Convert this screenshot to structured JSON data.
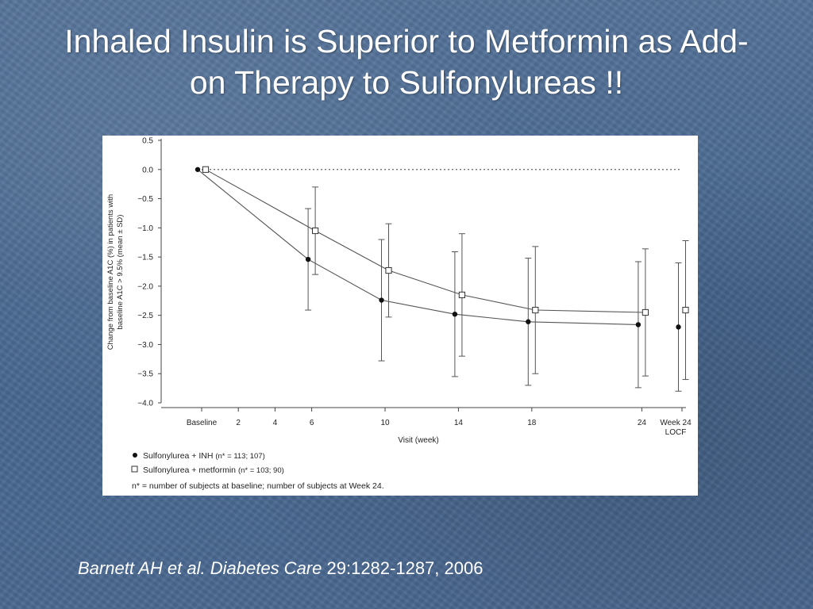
{
  "slide": {
    "title_line1": "Inhaled Insulin is Superior to Metformin as Add-",
    "title_line2": "on Therapy to Sulfonylureas !!",
    "citation_authors": "Barnett AH et al.",
    "citation_journal": "Diabetes Care",
    "citation_details": "29:1282-1287, 2006"
  },
  "chart_data": {
    "type": "line",
    "title": "",
    "xlabel": "Visit (week)",
    "ylabel_line1": "Change from baseline A1C (%) in patients with",
    "ylabel_line2": "baseline A1C > 9.5% (mean ± SD)",
    "ylim": [
      -4.0,
      0.5
    ],
    "y_ticks": [
      "0.5",
      "0.0",
      "−0.5",
      "−1.0",
      "−1.5",
      "−2.0",
      "−2.5",
      "−3.0",
      "−3.5",
      "−4.0"
    ],
    "x_ticks": [
      "Baseline",
      "2",
      "4",
      "6",
      "10",
      "14",
      "18",
      "24",
      "Week 24",
      "LOCF"
    ],
    "reference_line": 0.0,
    "series": [
      {
        "name": "Sulfonylurea + INH",
        "n_note": "(n* = 113; 107)",
        "marker": "filled-circle",
        "x": [
          "Baseline",
          "6",
          "10",
          "14",
          "18",
          "24",
          "Week 24 LOCF"
        ],
        "y": [
          0.0,
          -1.54,
          -2.24,
          -2.48,
          -2.61,
          -2.66,
          -2.7
        ],
        "sd": [
          0,
          0.87,
          1.04,
          1.07,
          1.09,
          1.08,
          1.1
        ]
      },
      {
        "name": "Sulfonylurea + metformin",
        "n_note": "(n* = 103; 90)",
        "marker": "open-square",
        "x": [
          "Baseline",
          "6",
          "10",
          "14",
          "18",
          "24",
          "Week 24 LOCF"
        ],
        "y": [
          0.0,
          -1.05,
          -1.73,
          -2.15,
          -2.41,
          -2.45,
          -2.41
        ],
        "sd": [
          0,
          0.75,
          0.8,
          1.05,
          1.09,
          1.09,
          1.19
        ]
      }
    ],
    "footnote": "n* = number of subjects at baseline; number of subjects at Week 24."
  }
}
